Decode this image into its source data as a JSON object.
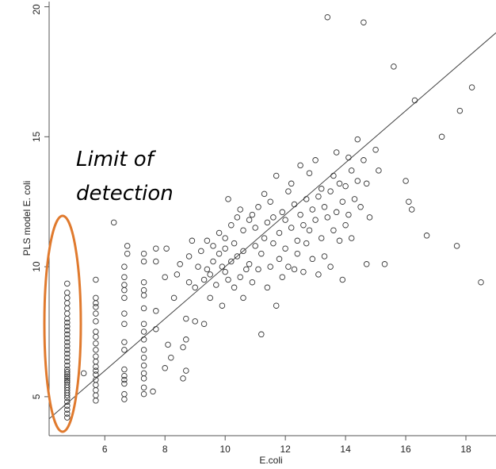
{
  "chart_data": {
    "type": "scatter",
    "title": "",
    "xlabel": "E.coli",
    "ylabel": "PLS model E. coli",
    "xlim": [
      4.15,
      19.0
    ],
    "ylim": [
      3.5,
      20.2
    ],
    "x_ticks": [
      6,
      8,
      10,
      12,
      14,
      16,
      18
    ],
    "y_ticks": [
      5,
      10,
      15,
      20
    ],
    "grid": false,
    "fit_line": {
      "x": [
        4.15,
        19.0
      ],
      "y": [
        4.15,
        19.0
      ]
    },
    "annotation": {
      "line1": "Limit of",
      "line2": "detection"
    },
    "colors": {
      "points": "#333333",
      "fit_line": "#444444",
      "highlight": "#e07a2e"
    },
    "points": [
      [
        4.75,
        4.2
      ],
      [
        4.75,
        4.35
      ],
      [
        4.75,
        4.5
      ],
      [
        4.75,
        4.65
      ],
      [
        4.75,
        4.8
      ],
      [
        4.75,
        4.95
      ],
      [
        4.75,
        5.05
      ],
      [
        4.75,
        5.15
      ],
      [
        4.75,
        5.25
      ],
      [
        4.75,
        5.35
      ],
      [
        4.75,
        5.45
      ],
      [
        4.75,
        5.55
      ],
      [
        4.75,
        5.62
      ],
      [
        4.75,
        5.7
      ],
      [
        4.75,
        5.78
      ],
      [
        4.75,
        5.86
      ],
      [
        4.75,
        5.95
      ],
      [
        4.75,
        6.05
      ],
      [
        4.75,
        6.2
      ],
      [
        4.75,
        6.35
      ],
      [
        4.75,
        6.5
      ],
      [
        4.75,
        6.65
      ],
      [
        4.75,
        6.8
      ],
      [
        4.75,
        6.95
      ],
      [
        4.75,
        7.1
      ],
      [
        4.75,
        7.25
      ],
      [
        4.75,
        7.4
      ],
      [
        4.75,
        7.55
      ],
      [
        4.75,
        7.7
      ],
      [
        4.75,
        7.85
      ],
      [
        4.75,
        8.0
      ],
      [
        4.75,
        8.2
      ],
      [
        4.75,
        8.4
      ],
      [
        4.75,
        8.6
      ],
      [
        4.75,
        8.8
      ],
      [
        4.75,
        9.0
      ],
      [
        4.75,
        9.35
      ],
      [
        5.3,
        5.9
      ],
      [
        5.7,
        4.85
      ],
      [
        5.7,
        5.05
      ],
      [
        5.7,
        5.25
      ],
      [
        5.7,
        5.45
      ],
      [
        5.7,
        5.65
      ],
      [
        5.7,
        5.85
      ],
      [
        5.7,
        6.0
      ],
      [
        5.7,
        6.15
      ],
      [
        5.7,
        6.35
      ],
      [
        5.7,
        6.55
      ],
      [
        5.7,
        6.8
      ],
      [
        5.7,
        7.05
      ],
      [
        5.7,
        7.3
      ],
      [
        5.7,
        7.5
      ],
      [
        5.7,
        7.9
      ],
      [
        5.7,
        8.2
      ],
      [
        5.7,
        8.45
      ],
      [
        5.7,
        8.6
      ],
      [
        5.7,
        8.8
      ],
      [
        5.7,
        9.5
      ],
      [
        6.3,
        11.7
      ],
      [
        6.65,
        4.9
      ],
      [
        6.65,
        5.1
      ],
      [
        6.65,
        5.5
      ],
      [
        6.65,
        5.65
      ],
      [
        6.65,
        5.8
      ],
      [
        6.65,
        6.05
      ],
      [
        6.65,
        6.8
      ],
      [
        6.65,
        7.1
      ],
      [
        6.65,
        7.8
      ],
      [
        6.65,
        8.2
      ],
      [
        6.65,
        8.8
      ],
      [
        6.65,
        9.1
      ],
      [
        6.65,
        9.3
      ],
      [
        6.65,
        9.6
      ],
      [
        6.65,
        10.0
      ],
      [
        6.75,
        10.5
      ],
      [
        6.75,
        10.8
      ],
      [
        7.3,
        5.1
      ],
      [
        7.3,
        5.35
      ],
      [
        7.3,
        5.7
      ],
      [
        7.3,
        5.9
      ],
      [
        7.3,
        6.2
      ],
      [
        7.3,
        6.5
      ],
      [
        7.3,
        6.8
      ],
      [
        7.3,
        7.2
      ],
      [
        7.3,
        7.5
      ],
      [
        7.3,
        7.8
      ],
      [
        7.3,
        8.4
      ],
      [
        7.3,
        8.9
      ],
      [
        7.3,
        9.1
      ],
      [
        7.3,
        9.4
      ],
      [
        7.3,
        10.2
      ],
      [
        7.3,
        10.5
      ],
      [
        7.7,
        7.6
      ],
      [
        7.7,
        8.3
      ],
      [
        7.7,
        10.2
      ],
      [
        7.7,
        10.7
      ],
      [
        7.6,
        5.2
      ],
      [
        8.0,
        6.1
      ],
      [
        8.0,
        9.6
      ],
      [
        8.05,
        10.7
      ],
      [
        8.2,
        6.5
      ],
      [
        8.1,
        7.0
      ],
      [
        8.3,
        8.8
      ],
      [
        8.4,
        9.7
      ],
      [
        8.5,
        10.1
      ],
      [
        8.6,
        5.7
      ],
      [
        8.6,
        6.9
      ],
      [
        8.7,
        6.0
      ],
      [
        8.7,
        7.2
      ],
      [
        8.7,
        8.0
      ],
      [
        8.8,
        9.4
      ],
      [
        8.8,
        10.4
      ],
      [
        8.9,
        11.0
      ],
      [
        9.0,
        7.9
      ],
      [
        9.0,
        9.2
      ],
      [
        9.1,
        10.0
      ],
      [
        9.2,
        10.6
      ],
      [
        9.3,
        7.8
      ],
      [
        9.3,
        9.5
      ],
      [
        9.4,
        9.9
      ],
      [
        9.4,
        11.0
      ],
      [
        9.5,
        8.8
      ],
      [
        9.5,
        9.7
      ],
      [
        9.6,
        10.2
      ],
      [
        9.6,
        10.8
      ],
      [
        9.7,
        9.3
      ],
      [
        9.8,
        11.3
      ],
      [
        9.8,
        10.5
      ],
      [
        9.9,
        8.5
      ],
      [
        9.9,
        10.0
      ],
      [
        10.0,
        9.8
      ],
      [
        10.0,
        10.7
      ],
      [
        10.0,
        11.1
      ],
      [
        10.1,
        9.5
      ],
      [
        10.1,
        12.6
      ],
      [
        10.2,
        10.2
      ],
      [
        10.2,
        11.6
      ],
      [
        10.3,
        9.2
      ],
      [
        10.3,
        10.9
      ],
      [
        10.4,
        11.9
      ],
      [
        10.4,
        10.4
      ],
      [
        10.5,
        9.6
      ],
      [
        10.5,
        12.2
      ],
      [
        10.6,
        8.8
      ],
      [
        10.6,
        10.6
      ],
      [
        10.6,
        11.4
      ],
      [
        10.7,
        9.9
      ],
      [
        10.8,
        11.8
      ],
      [
        10.8,
        10.1
      ],
      [
        10.9,
        12.0
      ],
      [
        10.9,
        9.4
      ],
      [
        11.0,
        10.8
      ],
      [
        11.0,
        11.5
      ],
      [
        11.1,
        12.3
      ],
      [
        11.1,
        9.9
      ],
      [
        11.2,
        7.4
      ],
      [
        11.2,
        10.5
      ],
      [
        11.3,
        11.1
      ],
      [
        11.3,
        12.8
      ],
      [
        11.4,
        9.2
      ],
      [
        11.4,
        11.7
      ],
      [
        11.5,
        10.0
      ],
      [
        11.5,
        12.5
      ],
      [
        11.6,
        10.9
      ],
      [
        11.6,
        11.9
      ],
      [
        11.7,
        8.5
      ],
      [
        11.7,
        13.5
      ],
      [
        11.8,
        11.3
      ],
      [
        11.8,
        10.3
      ],
      [
        11.9,
        12.1
      ],
      [
        11.9,
        9.6
      ],
      [
        12.0,
        10.7
      ],
      [
        12.0,
        11.8
      ],
      [
        12.1,
        12.9
      ],
      [
        12.1,
        10.0
      ],
      [
        12.2,
        11.5
      ],
      [
        12.2,
        13.2
      ],
      [
        12.3,
        9.9
      ],
      [
        12.3,
        12.4
      ],
      [
        12.4,
        11.0
      ],
      [
        12.4,
        10.5
      ],
      [
        12.5,
        12.0
      ],
      [
        12.5,
        13.9
      ],
      [
        12.6,
        11.6
      ],
      [
        12.6,
        9.8
      ],
      [
        12.7,
        12.6
      ],
      [
        12.7,
        10.9
      ],
      [
        12.8,
        11.4
      ],
      [
        12.8,
        13.6
      ],
      [
        12.9,
        10.3
      ],
      [
        12.9,
        12.2
      ],
      [
        13.0,
        11.8
      ],
      [
        13.0,
        14.1
      ],
      [
        13.1,
        12.7
      ],
      [
        13.1,
        9.7
      ],
      [
        13.2,
        11.1
      ],
      [
        13.2,
        13.0
      ],
      [
        13.3,
        12.3
      ],
      [
        13.3,
        10.4
      ],
      [
        13.4,
        11.9
      ],
      [
        13.4,
        19.6
      ],
      [
        13.5,
        12.9
      ],
      [
        13.5,
        10.0
      ],
      [
        13.6,
        13.5
      ],
      [
        13.6,
        11.4
      ],
      [
        13.7,
        12.1
      ],
      [
        13.7,
        14.4
      ],
      [
        13.8,
        11.0
      ],
      [
        13.8,
        13.2
      ],
      [
        13.9,
        12.5
      ],
      [
        13.9,
        9.5
      ],
      [
        14.0,
        13.1
      ],
      [
        14.0,
        11.6
      ],
      [
        14.1,
        14.2
      ],
      [
        14.1,
        12.0
      ],
      [
        14.2,
        11.1
      ],
      [
        14.2,
        13.7
      ],
      [
        14.3,
        12.6
      ],
      [
        14.4,
        14.9
      ],
      [
        14.4,
        13.3
      ],
      [
        14.5,
        12.3
      ],
      [
        14.6,
        19.4
      ],
      [
        14.6,
        14.1
      ],
      [
        14.7,
        10.1
      ],
      [
        14.7,
        13.2
      ],
      [
        14.8,
        11.9
      ],
      [
        15.0,
        14.5
      ],
      [
        15.1,
        13.7
      ],
      [
        15.3,
        10.1
      ],
      [
        15.6,
        17.7
      ],
      [
        16.0,
        13.3
      ],
      [
        16.1,
        12.5
      ],
      [
        16.2,
        12.2
      ],
      [
        16.3,
        16.4
      ],
      [
        16.7,
        11.2
      ],
      [
        17.2,
        15.0
      ],
      [
        17.7,
        10.8
      ],
      [
        17.8,
        16.0
      ],
      [
        18.2,
        16.9
      ],
      [
        18.5,
        9.4
      ]
    ]
  }
}
